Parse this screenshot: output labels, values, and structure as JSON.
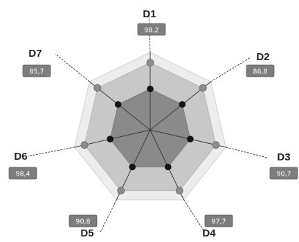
{
  "chart_data": {
    "type": "radar",
    "categories": [
      "D1",
      "D2",
      "D3",
      "D4",
      "D5",
      "D6",
      "D7"
    ],
    "series": [
      {
        "values": [
          98.2,
          86.8,
          90.7,
          97.7,
          90.8,
          98.4,
          85.7
        ],
        "value_labels": [
          "98,2",
          "86,8",
          "90,7",
          "97,7",
          "90,8",
          "98,4",
          "85,7"
        ]
      }
    ],
    "title": "",
    "grid": true,
    "colors": {
      "outer_band": "#ededed",
      "middle_band": "#c8c8c8",
      "inner_band": "#8a8a8a",
      "outer_marker": "#8c8c8c",
      "inner_marker": "#151515",
      "label_box": "#7d7d7d",
      "leader_line": "#333333"
    }
  }
}
